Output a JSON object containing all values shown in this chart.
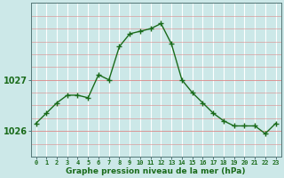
{
  "hours": [
    0,
    1,
    2,
    3,
    4,
    5,
    6,
    7,
    8,
    9,
    10,
    11,
    12,
    13,
    14,
    15,
    16,
    17,
    18,
    19,
    20,
    21,
    22,
    23
  ],
  "pressure": [
    1026.15,
    1026.35,
    1026.55,
    1026.7,
    1026.7,
    1026.65,
    1027.1,
    1027.0,
    1027.65,
    1027.9,
    1027.95,
    1028.0,
    1028.1,
    1027.7,
    1027.0,
    1026.75,
    1026.55,
    1026.35,
    1026.2,
    1026.1,
    1026.1,
    1026.1,
    1025.95,
    1026.15
  ],
  "line_color": "#1a6b1a",
  "marker": "+",
  "bg_color": "#cce8e8",
  "hgrid_color": "#dd8888",
  "vgrid_color": "#ffffff",
  "xlabel_label": "Graphe pression niveau de la mer (hPa)",
  "xlabel_ticks": [
    "0",
    "1",
    "2",
    "3",
    "4",
    "5",
    "6",
    "7",
    "8",
    "9",
    "10",
    "11",
    "12",
    "13",
    "14",
    "15",
    "16",
    "17",
    "18",
    "19",
    "20",
    "21",
    "22",
    "23"
  ],
  "ylim": [
    1025.5,
    1028.5
  ],
  "yticks": [
    1026.0,
    1027.0
  ],
  "axis_bg": "#cce8e8"
}
